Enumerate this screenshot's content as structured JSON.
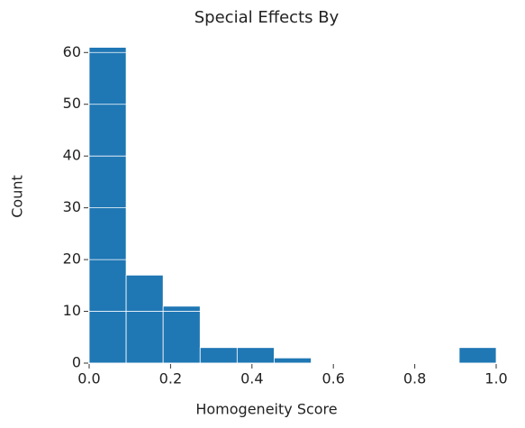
{
  "chart_data": {
    "type": "histogram",
    "title": "Special Effects By",
    "x_label": "Homogeneity Score",
    "y_label": "Count",
    "bins": [
      0,
      0.0909,
      0.1818,
      0.2727,
      0.3636,
      0.4545,
      0.5455,
      0.6364,
      0.7273,
      0.8182,
      0.9091,
      1.0
    ],
    "values": [
      61,
      17,
      11,
      3,
      3,
      1,
      0,
      0,
      0,
      0,
      3
    ],
    "color": "#1f77b4",
    "xlim": [
      0,
      1
    ],
    "xticks": [
      {
        "value": 0,
        "label": "0.0"
      },
      0.2,
      0.4,
      0.6,
      0.8,
      {
        "value": 1,
        "label": "1.0"
      }
    ],
    "ylim": [
      0,
      64.05
    ],
    "yticks": [
      0,
      10,
      20,
      30,
      40,
      50,
      60
    ],
    "grid": true,
    "grid_color": "#ffffff"
  }
}
